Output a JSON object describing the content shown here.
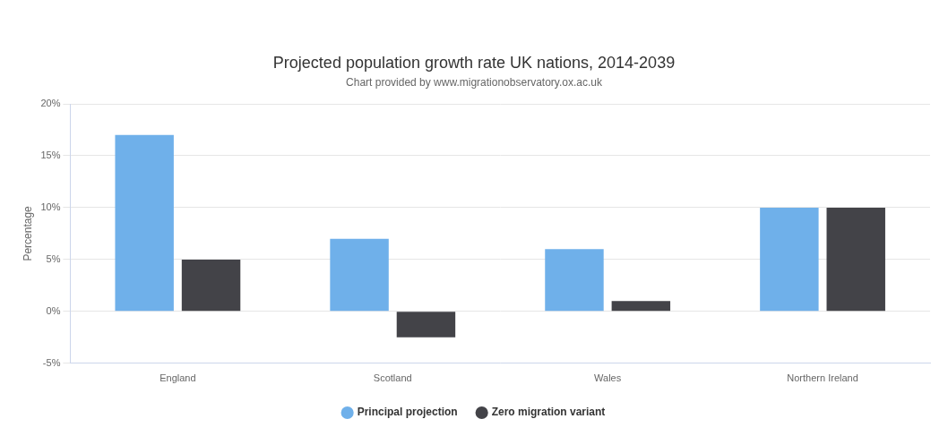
{
  "chart_data": {
    "type": "bar",
    "title": "Projected population growth rate UK nations, 2014-2039",
    "subtitle": "Chart provided by www.migrationobservatory.ox.ac.uk",
    "y_label": "Percentage",
    "categories": [
      "England",
      "Scotland",
      "Wales",
      "Northern Ireland"
    ],
    "series": [
      {
        "name": "Principal projection",
        "color": "#6fb0ea",
        "values": [
          17,
          7,
          6,
          10
        ]
      },
      {
        "name": "Zero migration variant",
        "color": "#434348",
        "values": [
          5,
          -2.5,
          1,
          10
        ]
      }
    ],
    "ylim": [
      -5,
      20
    ],
    "yticks": [
      {
        "value": -5,
        "label": "-5%"
      },
      {
        "value": 0,
        "label": "0%"
      },
      {
        "value": 5,
        "label": "5%"
      },
      {
        "value": 10,
        "label": "10%"
      },
      {
        "value": 15,
        "label": "15%"
      },
      {
        "value": 20,
        "label": "20%"
      }
    ],
    "grid": true,
    "legend": "bottom"
  }
}
